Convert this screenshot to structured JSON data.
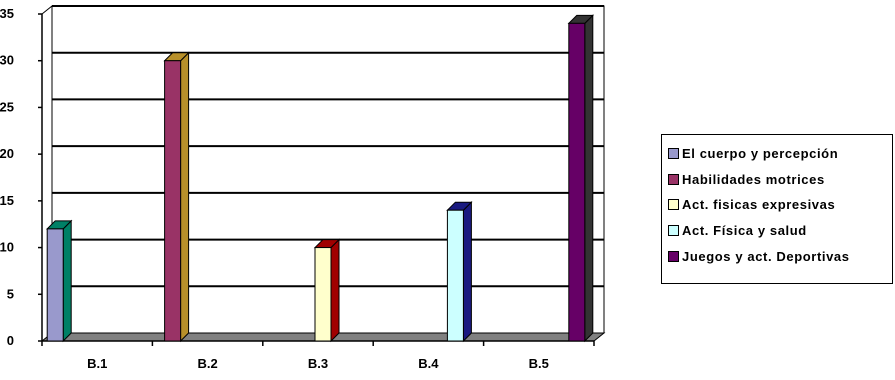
{
  "chart_data": {
    "type": "bar",
    "title": "",
    "xlabel": "",
    "ylabel": "",
    "categories": [
      "B.1",
      "B.2",
      "B.3",
      "B.4",
      "B.5"
    ],
    "ylim": [
      0,
      35
    ],
    "yticks": [
      "0",
      "5",
      "10",
      "15",
      "20",
      "25",
      "30",
      "35"
    ],
    "grid": true,
    "legend_position": "right",
    "series": [
      {
        "name": "El cuerpo y percepción",
        "values": [
          12,
          0,
          0,
          0,
          0
        ],
        "color": "#9999cc",
        "side": "#008066"
      },
      {
        "name": "Habilidades motrices",
        "values": [
          0,
          30,
          0,
          0,
          0
        ],
        "color": "#993366",
        "side": "#b8902a"
      },
      {
        "name": "Act. fisicas expresivas",
        "values": [
          0,
          0,
          10,
          0,
          0
        ],
        "color": "#ffffcc",
        "side": "#a00000"
      },
      {
        "name": "Act. Física y salud",
        "values": [
          0,
          0,
          0,
          14,
          0
        ],
        "color": "#ccffff",
        "side": "#1a1a80"
      },
      {
        "name": "Juegos y act. Deportivas",
        "values": [
          0,
          0,
          0,
          0,
          34
        ],
        "color": "#660066",
        "side": "#333333"
      }
    ]
  }
}
